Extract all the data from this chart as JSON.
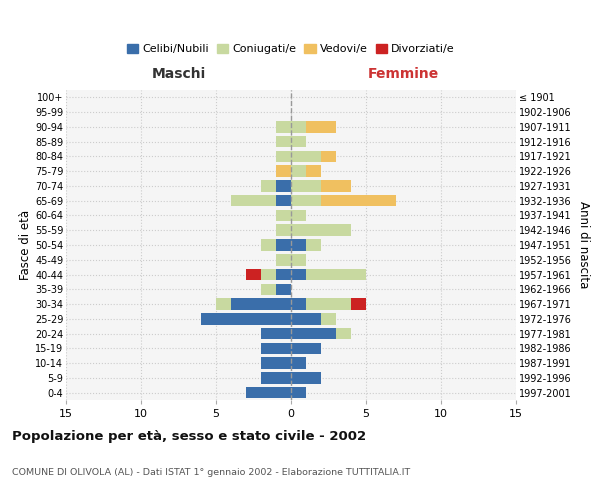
{
  "age_groups": [
    "0-4",
    "5-9",
    "10-14",
    "15-19",
    "20-24",
    "25-29",
    "30-34",
    "35-39",
    "40-44",
    "45-49",
    "50-54",
    "55-59",
    "60-64",
    "65-69",
    "70-74",
    "75-79",
    "80-84",
    "85-89",
    "90-94",
    "95-99",
    "100+"
  ],
  "birth_years": [
    "1997-2001",
    "1992-1996",
    "1987-1991",
    "1982-1986",
    "1977-1981",
    "1972-1976",
    "1967-1971",
    "1962-1966",
    "1957-1961",
    "1952-1956",
    "1947-1951",
    "1942-1946",
    "1937-1941",
    "1932-1936",
    "1927-1931",
    "1922-1926",
    "1917-1921",
    "1912-1916",
    "1907-1911",
    "1902-1906",
    "≤ 1901"
  ],
  "maschi": {
    "celibi": [
      3,
      2,
      2,
      2,
      2,
      6,
      4,
      1,
      1,
      0,
      1,
      0,
      0,
      1,
      1,
      0,
      0,
      0,
      0,
      0,
      0
    ],
    "coniugati": [
      0,
      0,
      0,
      0,
      0,
      0,
      1,
      1,
      1,
      1,
      1,
      1,
      1,
      3,
      1,
      0,
      1,
      1,
      1,
      0,
      0
    ],
    "vedovi": [
      0,
      0,
      0,
      0,
      0,
      0,
      0,
      0,
      0,
      0,
      0,
      0,
      0,
      0,
      0,
      1,
      0,
      0,
      0,
      0,
      0
    ],
    "divorziati": [
      0,
      0,
      0,
      0,
      0,
      0,
      0,
      0,
      1,
      0,
      0,
      0,
      0,
      0,
      0,
      0,
      0,
      0,
      0,
      0,
      0
    ]
  },
  "femmine": {
    "nubili": [
      1,
      2,
      1,
      2,
      3,
      2,
      1,
      0,
      1,
      0,
      1,
      0,
      0,
      0,
      0,
      0,
      0,
      0,
      0,
      0,
      0
    ],
    "coniugate": [
      0,
      0,
      0,
      0,
      1,
      1,
      3,
      0,
      4,
      1,
      1,
      4,
      1,
      2,
      2,
      1,
      2,
      1,
      1,
      0,
      0
    ],
    "vedove": [
      0,
      0,
      0,
      0,
      0,
      0,
      0,
      0,
      0,
      0,
      0,
      0,
      0,
      5,
      2,
      1,
      1,
      0,
      2,
      0,
      0
    ],
    "divorziate": [
      0,
      0,
      0,
      0,
      0,
      0,
      1,
      0,
      0,
      0,
      0,
      0,
      0,
      0,
      0,
      0,
      0,
      0,
      0,
      0,
      0
    ]
  },
  "colors": {
    "celibi": "#3a6eaa",
    "coniugati": "#c8d9a0",
    "vedovi": "#f0c060",
    "divorziati": "#cc2222"
  },
  "title": "Popolazione per età, sesso e stato civile - 2002",
  "subtitle": "COMUNE DI OLIVOLA (AL) - Dati ISTAT 1° gennaio 2002 - Elaborazione TUTTITALIA.IT",
  "xlabel_left": "Maschi",
  "xlabel_right": "Femmine",
  "ylabel_left": "Fasce di età",
  "ylabel_right": "Anni di nascita",
  "xlim": 15,
  "bg_color": "#ffffff",
  "plot_bg_color": "#f5f5f5",
  "grid_color": "#cccccc"
}
